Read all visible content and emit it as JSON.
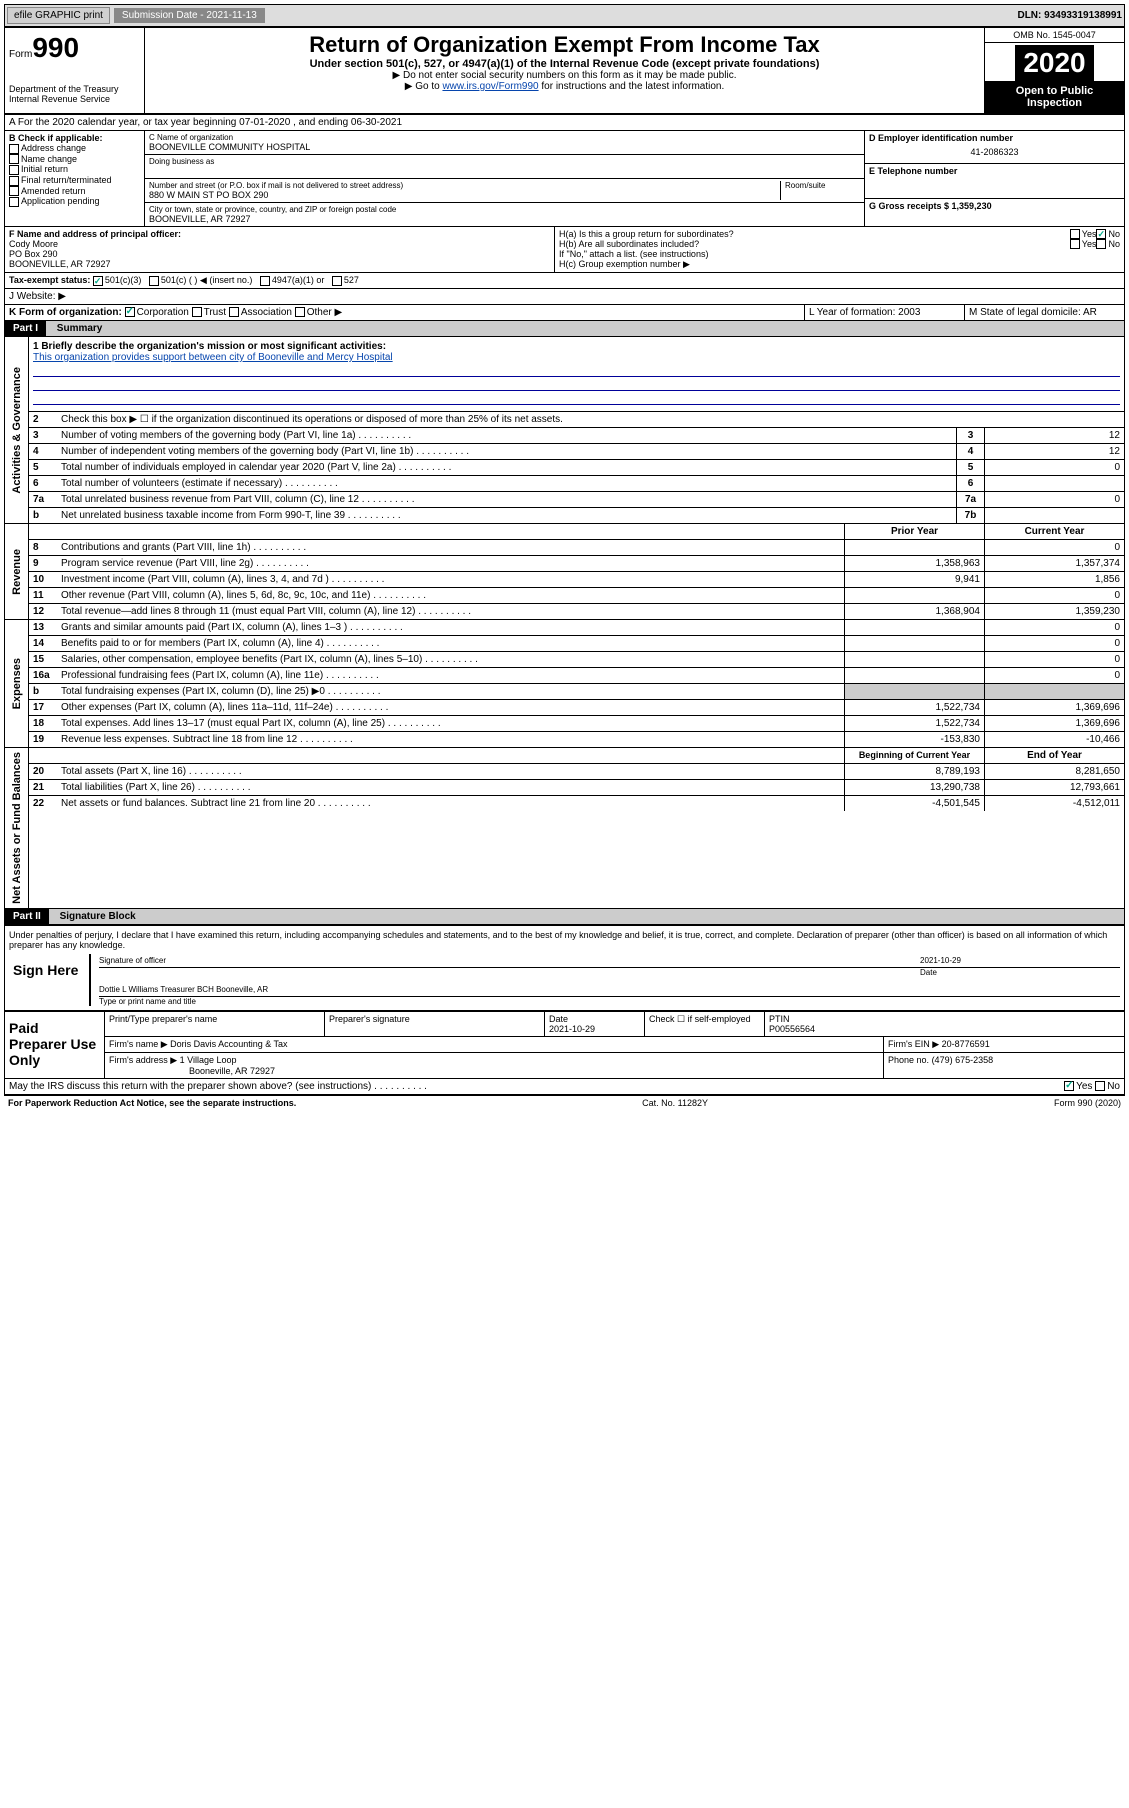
{
  "top_bar": {
    "efile": "efile GRAPHIC print",
    "submission_label": "Submission Date - 2021-11-13",
    "dln_label": "DLN: 93493319138991"
  },
  "title_block": {
    "form_word": "Form",
    "form_num": "990",
    "dept": "Department of the Treasury",
    "irs": "Internal Revenue Service",
    "main": "Return of Organization Exempt From Income Tax",
    "sub": "Under section 501(c), 527, or 4947(a)(1) of the Internal Revenue Code (except private foundations)",
    "instr1": "▶ Do not enter social security numbers on this form as it may be made public.",
    "instr2_pre": "▶ Go to ",
    "instr2_link": "www.irs.gov/Form990",
    "instr2_post": " for instructions and the latest information.",
    "omb": "OMB No. 1545-0047",
    "year": "2020",
    "open": "Open to Public Inspection"
  },
  "section_a": "A For the 2020 calendar year, or tax year beginning 07-01-2020    , and ending 06-30-2021",
  "section_b": {
    "label": "B Check if applicable:",
    "opts": [
      "Address change",
      "Name change",
      "Initial return",
      "Final return/terminated",
      "Amended return",
      "Application pending"
    ]
  },
  "section_c": {
    "name_label": "C Name of organization",
    "name": "BOONEVILLE COMMUNITY HOSPITAL",
    "dba_label": "Doing business as",
    "addr_label": "Number and street (or P.O. box if mail is not delivered to street address)",
    "room_label": "Room/suite",
    "addr": "880 W MAIN ST PO BOX 290",
    "city_label": "City or town, state or province, country, and ZIP or foreign postal code",
    "city": "BOONEVILLE, AR  72927"
  },
  "section_d": {
    "label": "D Employer identification number",
    "val": "41-2086323"
  },
  "section_e": {
    "label": "E Telephone number"
  },
  "section_g": {
    "label": "G Gross receipts $ 1,359,230"
  },
  "section_f": {
    "label": "F  Name and address of principal officer:",
    "name": "Cody Moore",
    "addr1": "PO Box 290",
    "addr2": "BOONEVILLE, AR  72927"
  },
  "section_h": {
    "a": "H(a)  Is this a group return for subordinates?",
    "b": "H(b)  Are all subordinates included?",
    "b_note": "If \"No,\" attach a list. (see instructions)",
    "c": "H(c)  Group exemption number ▶",
    "yes": "Yes",
    "no": "No"
  },
  "tax_exempt": {
    "label": "Tax-exempt status:",
    "opt1": "501(c)(3)",
    "opt2": "501(c) (  ) ◀ (insert no.)",
    "opt3": "4947(a)(1) or",
    "opt4": "527"
  },
  "website_label": "J   Website: ▶",
  "section_k": {
    "label": "K Form of organization:",
    "opts": [
      "Corporation",
      "Trust",
      "Association",
      "Other ▶"
    ]
  },
  "section_l": {
    "label": "L Year of formation: 2003"
  },
  "section_m": {
    "label": "M State of legal domicile: AR"
  },
  "part1": {
    "hdr": "Part I",
    "title": "Summary"
  },
  "summary": {
    "governance_label": "Activities & Governance",
    "revenue_label": "Revenue",
    "expenses_label": "Expenses",
    "netassets_label": "Net Assets or Fund Balances",
    "l1_label": "1  Briefly describe the organization's mission or most significant activities:",
    "l1_text": "This organization provides support between city of Booneville and Mercy Hospital",
    "l2": "Check this box ▶ ☐  if the organization discontinued its operations or disposed of more than 25% of its net assets.",
    "lines_single": [
      {
        "n": "3",
        "t": "Number of voting members of the governing body (Part VI, line 1a)",
        "box": "3",
        "v": "12"
      },
      {
        "n": "4",
        "t": "Number of independent voting members of the governing body (Part VI, line 1b)",
        "box": "4",
        "v": "12"
      },
      {
        "n": "5",
        "t": "Total number of individuals employed in calendar year 2020 (Part V, line 2a)",
        "box": "5",
        "v": "0"
      },
      {
        "n": "6",
        "t": "Total number of volunteers (estimate if necessary)",
        "box": "6",
        "v": ""
      },
      {
        "n": "7a",
        "t": "Total unrelated business revenue from Part VIII, column (C), line 12",
        "box": "7a",
        "v": "0"
      },
      {
        "n": "b",
        "t": "Net unrelated business taxable income from Form 990-T, line 39",
        "box": "7b",
        "v": ""
      }
    ],
    "col_hdrs": {
      "prior": "Prior Year",
      "current": "Current Year"
    },
    "revenue_lines": [
      {
        "n": "8",
        "t": "Contributions and grants (Part VIII, line 1h)",
        "p": "",
        "c": "0"
      },
      {
        "n": "9",
        "t": "Program service revenue (Part VIII, line 2g)",
        "p": "1,358,963",
        "c": "1,357,374"
      },
      {
        "n": "10",
        "t": "Investment income (Part VIII, column (A), lines 3, 4, and 7d )",
        "p": "9,941",
        "c": "1,856"
      },
      {
        "n": "11",
        "t": "Other revenue (Part VIII, column (A), lines 5, 6d, 8c, 9c, 10c, and 11e)",
        "p": "",
        "c": "0"
      },
      {
        "n": "12",
        "t": "Total revenue—add lines 8 through 11 (must equal Part VIII, column (A), line 12)",
        "p": "1,368,904",
        "c": "1,359,230"
      }
    ],
    "expense_lines": [
      {
        "n": "13",
        "t": "Grants and similar amounts paid (Part IX, column (A), lines 1–3 )",
        "p": "",
        "c": "0"
      },
      {
        "n": "14",
        "t": "Benefits paid to or for members (Part IX, column (A), line 4)",
        "p": "",
        "c": "0"
      },
      {
        "n": "15",
        "t": "Salaries, other compensation, employee benefits (Part IX, column (A), lines 5–10)",
        "p": "",
        "c": "0"
      },
      {
        "n": "16a",
        "t": "Professional fundraising fees (Part IX, column (A), line 11e)",
        "p": "",
        "c": "0"
      },
      {
        "n": "b",
        "t": "Total fundraising expenses (Part IX, column (D), line 25) ▶0",
        "p": null,
        "c": null
      },
      {
        "n": "17",
        "t": "Other expenses (Part IX, column (A), lines 11a–11d, 11f–24e)",
        "p": "1,522,734",
        "c": "1,369,696"
      },
      {
        "n": "18",
        "t": "Total expenses. Add lines 13–17 (must equal Part IX, column (A), line 25)",
        "p": "1,522,734",
        "c": "1,369,696"
      },
      {
        "n": "19",
        "t": "Revenue less expenses. Subtract line 18 from line 12",
        "p": "-153,830",
        "c": "-10,466"
      }
    ],
    "net_hdrs": {
      "begin": "Beginning of Current Year",
      "end": "End of Year"
    },
    "net_lines": [
      {
        "n": "20",
        "t": "Total assets (Part X, line 16)",
        "p": "8,789,193",
        "c": "8,281,650"
      },
      {
        "n": "21",
        "t": "Total liabilities (Part X, line 26)",
        "p": "13,290,738",
        "c": "12,793,661"
      },
      {
        "n": "22",
        "t": "Net assets or fund balances. Subtract line 21 from line 20",
        "p": "-4,501,545",
        "c": "-4,512,011"
      }
    ]
  },
  "part2": {
    "hdr": "Part II",
    "title": "Signature Block"
  },
  "sig": {
    "perjury": "Under penalties of perjury, I declare that I have examined this return, including accompanying schedules and statements, and to the best of my knowledge and belief, it is true, correct, and complete. Declaration of preparer (other than officer) is based on all information of which preparer has any knowledge.",
    "sign_here": "Sign Here",
    "sig_officer": "Signature of officer",
    "date": "Date",
    "sig_date": "2021-10-29",
    "name_title": "Dottie L Williams  Treasurer BCH Booneville, AR",
    "type_name": "Type or print name and title"
  },
  "prep": {
    "label": "Paid Preparer Use Only",
    "print_name": "Print/Type preparer's name",
    "prep_sig": "Preparer's signature",
    "date_label": "Date",
    "date_val": "2021-10-29",
    "check_label": "Check ☐ if self-employed",
    "ptin_label": "PTIN",
    "ptin_val": "P00556564",
    "firm_name_label": "Firm's name    ▶",
    "firm_name": "Doris Davis Accounting & Tax",
    "firm_ein_label": "Firm's EIN ▶",
    "firm_ein": "20-8776591",
    "firm_addr_label": "Firm's address ▶",
    "firm_addr1": "1 Village Loop",
    "firm_addr2": "Booneville, AR  72927",
    "phone_label": "Phone no.",
    "phone": "(479) 675-2358"
  },
  "discuss": "May the IRS discuss this return with the preparer shown above? (see instructions)",
  "footer": {
    "pra": "For Paperwork Reduction Act Notice, see the separate instructions.",
    "cat": "Cat. No. 11282Y",
    "form": "Form 990 (2020)"
  }
}
